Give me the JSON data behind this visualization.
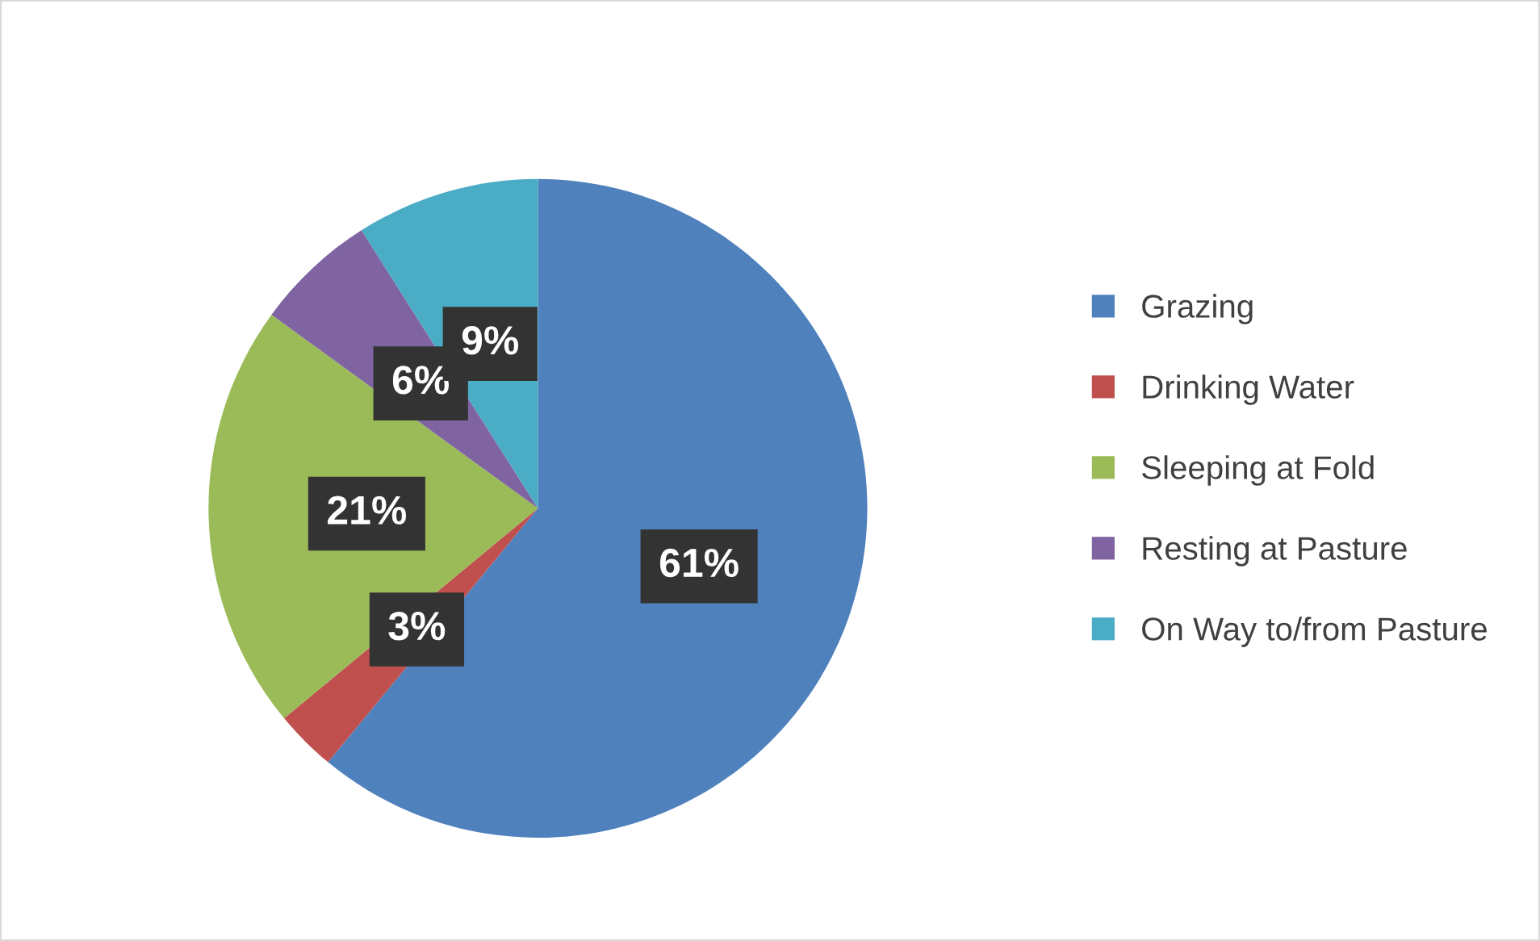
{
  "chart_data": {
    "type": "pie",
    "categories": [
      "Grazing",
      "Drinking Water",
      "Sleeping at Fold",
      "Resting at Pasture",
      "On Way to/from Pasture"
    ],
    "values": [
      61,
      3,
      21,
      6,
      9
    ],
    "colors": [
      "#4f81bd",
      "#c0504d",
      "#9bbb59",
      "#8064a2",
      "#4bacc6"
    ],
    "value_labels": [
      "61%",
      "3%",
      "21%",
      "6%",
      "9%"
    ],
    "legend": "right"
  }
}
